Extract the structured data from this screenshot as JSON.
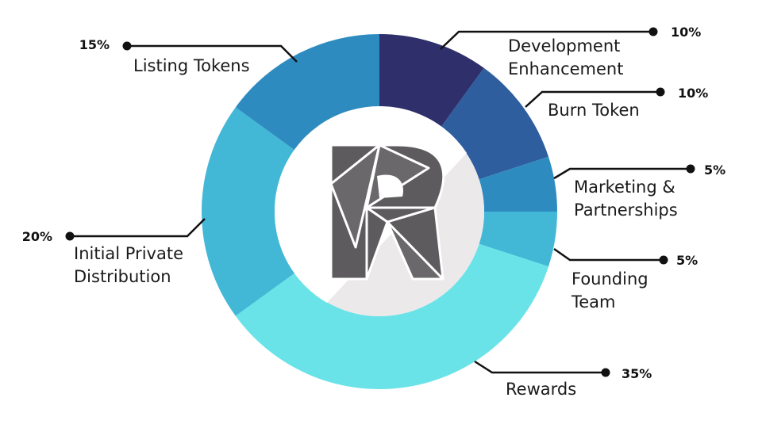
{
  "chart_data": {
    "type": "pie",
    "donut": true,
    "title": "",
    "slices": [
      {
        "label_lines": [
          "Development",
          "Enhancement"
        ],
        "value": 10,
        "value_label": "10%",
        "color": "#2e2f6b"
      },
      {
        "label_lines": [
          "Burn Token"
        ],
        "value": 10,
        "value_label": "10%",
        "color": "#2e5e9e"
      },
      {
        "label_lines": [
          "Marketing &",
          "Partnerships"
        ],
        "value": 5,
        "value_label": "5%",
        "color": "#2e8bc0"
      },
      {
        "label_lines": [
          "Founding",
          "Team"
        ],
        "value": 5,
        "value_label": "5%",
        "color": "#42b8d6"
      },
      {
        "label_lines": [
          "Rewards"
        ],
        "value": 35,
        "value_label": "35%",
        "color": "#6ae3e8"
      },
      {
        "label_lines": [
          "Initial Private",
          "Distribution"
        ],
        "value": 20,
        "value_label": "20%",
        "color": "#42b8d6"
      },
      {
        "label_lines": [
          "Listing Tokens"
        ],
        "value": 15,
        "value_label": "15%",
        "color": "#2e8bc0"
      }
    ],
    "legend": "none",
    "center_logo": "R-logo"
  }
}
